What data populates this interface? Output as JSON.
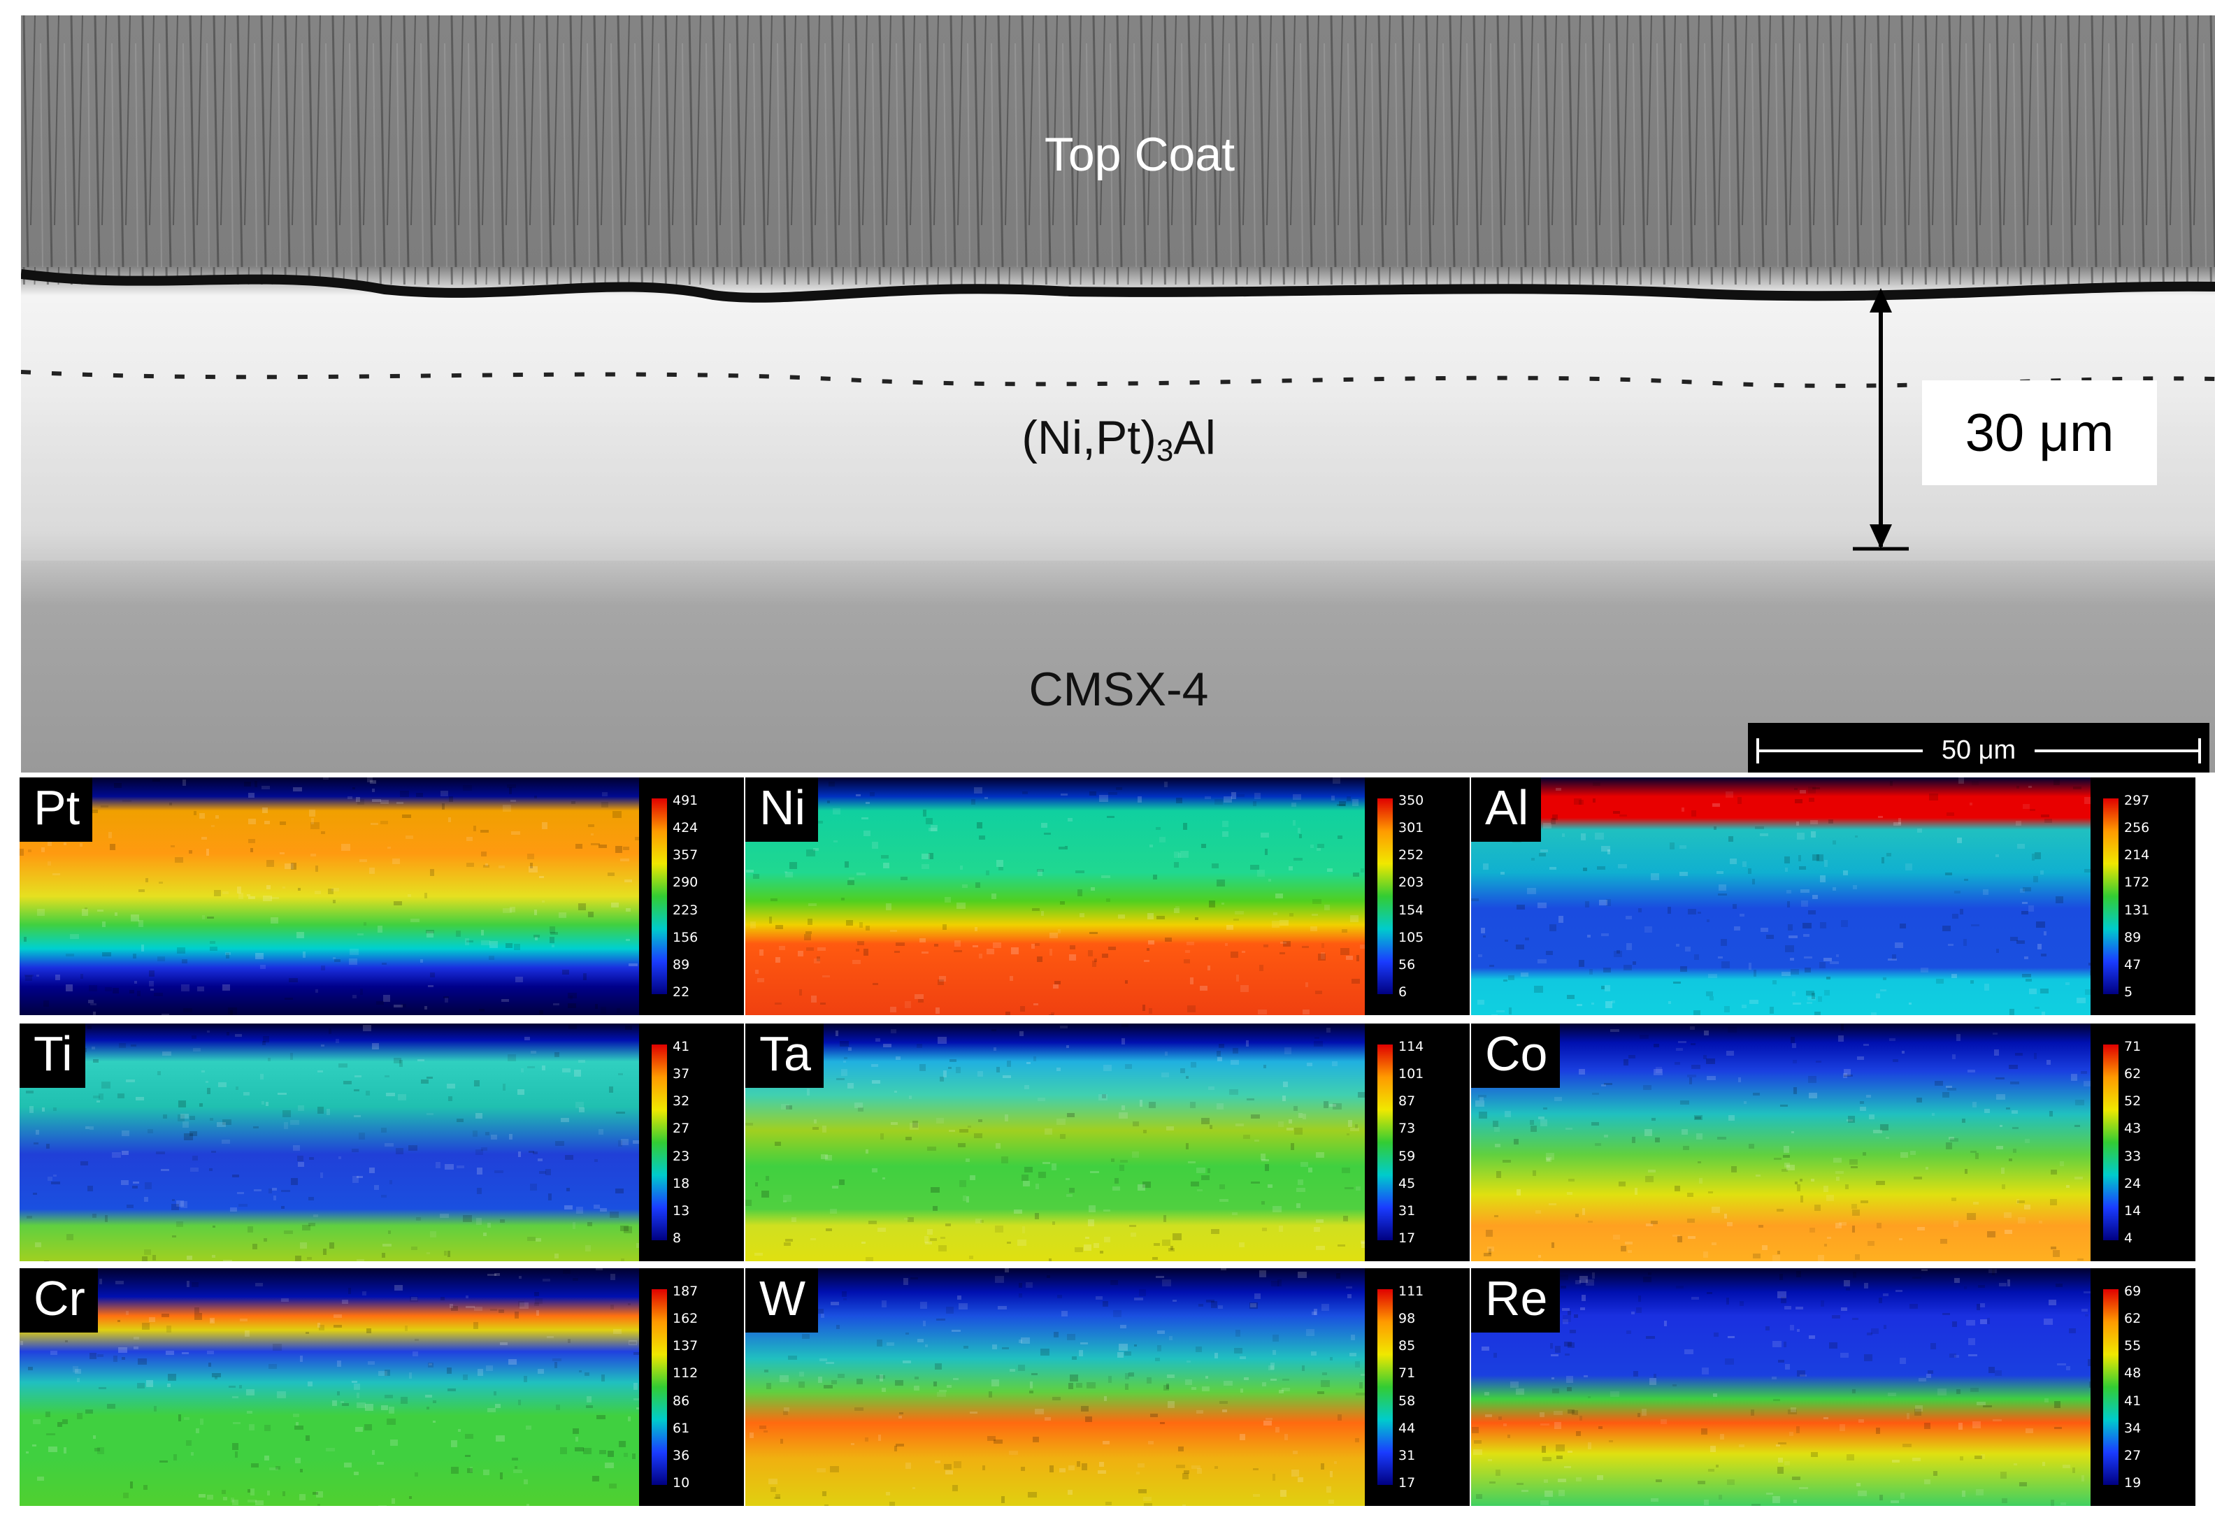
{
  "sem_image": {
    "labels": {
      "top_coat": "Top Coat",
      "bond_coat_prefix": "(Ni,Pt)",
      "bond_coat_subscript": "3",
      "bond_coat_suffix": "Al",
      "substrate": "CMSX-4"
    },
    "thickness_label": "30 μm",
    "scale_bar_label": "50 μm"
  },
  "element_maps": [
    {
      "element": "Pt",
      "scale": [
        "491",
        "424",
        "357",
        "290",
        "223",
        "156",
        "89",
        "22"
      ],
      "profile": [
        [
          0,
          "#000030"
        ],
        [
          0.08,
          "#000a90"
        ],
        [
          0.14,
          "#f0a000"
        ],
        [
          0.32,
          "#ff9a10"
        ],
        [
          0.5,
          "#e6e020"
        ],
        [
          0.62,
          "#40d040"
        ],
        [
          0.72,
          "#00d0d0"
        ],
        [
          0.8,
          "#1a30e0"
        ],
        [
          0.88,
          "#00008a"
        ],
        [
          1,
          "#000040"
        ]
      ]
    },
    {
      "element": "Ni",
      "scale": [
        "350",
        "301",
        "252",
        "203",
        "154",
        "105",
        "56",
        "6"
      ],
      "profile": [
        [
          0,
          "#000030"
        ],
        [
          0.08,
          "#0030c0"
        ],
        [
          0.14,
          "#10d0a0"
        ],
        [
          0.4,
          "#20d890"
        ],
        [
          0.52,
          "#50d020"
        ],
        [
          0.62,
          "#f0d000"
        ],
        [
          0.7,
          "#ff5a10"
        ],
        [
          1,
          "#f04010"
        ]
      ]
    },
    {
      "element": "Al",
      "scale": [
        "297",
        "256",
        "214",
        "172",
        "131",
        "89",
        "47",
        "5"
      ],
      "profile": [
        [
          0,
          "#000030"
        ],
        [
          0.08,
          "#e80000"
        ],
        [
          0.17,
          "#e80000"
        ],
        [
          0.22,
          "#20c0c0"
        ],
        [
          0.4,
          "#10b0d0"
        ],
        [
          0.55,
          "#1a4ce0"
        ],
        [
          0.8,
          "#1a50e0"
        ],
        [
          0.85,
          "#10c8e0"
        ],
        [
          1,
          "#10d0e0"
        ]
      ]
    },
    {
      "element": "Ti",
      "scale": [
        "41",
        "37",
        "32",
        "27",
        "23",
        "18",
        "13",
        "8"
      ],
      "profile": [
        [
          0,
          "#000030"
        ],
        [
          0.07,
          "#0010b0"
        ],
        [
          0.16,
          "#30d0c0"
        ],
        [
          0.35,
          "#20c0b0"
        ],
        [
          0.55,
          "#2040d8"
        ],
        [
          0.78,
          "#1a50e0"
        ],
        [
          0.85,
          "#60d040"
        ],
        [
          1,
          "#a0d020"
        ]
      ]
    },
    {
      "element": "Ta",
      "scale": [
        "114",
        "101",
        "87",
        "73",
        "59",
        "45",
        "31",
        "17"
      ],
      "profile": [
        [
          0,
          "#000030"
        ],
        [
          0.08,
          "#0010b0"
        ],
        [
          0.16,
          "#20b0e0"
        ],
        [
          0.3,
          "#40d0b0"
        ],
        [
          0.45,
          "#a0d020"
        ],
        [
          0.6,
          "#40d040"
        ],
        [
          0.78,
          "#50d040"
        ],
        [
          0.85,
          "#d0e020"
        ],
        [
          1,
          "#e0e010"
        ]
      ]
    },
    {
      "element": "Co",
      "scale": [
        "71",
        "62",
        "52",
        "43",
        "33",
        "24",
        "14",
        "4"
      ],
      "profile": [
        [
          0,
          "#000030"
        ],
        [
          0.08,
          "#0010b0"
        ],
        [
          0.2,
          "#1a40e0"
        ],
        [
          0.38,
          "#20c0c0"
        ],
        [
          0.55,
          "#60d040"
        ],
        [
          0.72,
          "#e0e010"
        ],
        [
          0.85,
          "#ffa020"
        ],
        [
          1,
          "#ffb020"
        ]
      ]
    },
    {
      "element": "Cr",
      "scale": [
        "187",
        "162",
        "137",
        "112",
        "86",
        "61",
        "36",
        "10"
      ],
      "profile": [
        [
          0,
          "#000030"
        ],
        [
          0.12,
          "#0010b0"
        ],
        [
          0.2,
          "#ff7010"
        ],
        [
          0.26,
          "#e0d010"
        ],
        [
          0.35,
          "#2040e0"
        ],
        [
          0.48,
          "#20c0c0"
        ],
        [
          0.62,
          "#40d040"
        ],
        [
          0.8,
          "#40d040"
        ],
        [
          1,
          "#50d030"
        ]
      ]
    },
    {
      "element": "W",
      "scale": [
        "111",
        "98",
        "85",
        "71",
        "58",
        "44",
        "31",
        "17"
      ],
      "profile": [
        [
          0,
          "#000030"
        ],
        [
          0.1,
          "#0010b0"
        ],
        [
          0.2,
          "#1a50e0"
        ],
        [
          0.38,
          "#20c0c0"
        ],
        [
          0.52,
          "#60d040"
        ],
        [
          0.65,
          "#ff6a10"
        ],
        [
          0.8,
          "#f0b010"
        ],
        [
          1,
          "#e0d010"
        ]
      ]
    },
    {
      "element": "Re",
      "scale": [
        "69",
        "62",
        "55",
        "48",
        "41",
        "34",
        "27",
        "19"
      ],
      "profile": [
        [
          0,
          "#000030"
        ],
        [
          0.1,
          "#0010b0"
        ],
        [
          0.2,
          "#1a30e0"
        ],
        [
          0.45,
          "#1a40e0"
        ],
        [
          0.55,
          "#40d040"
        ],
        [
          0.65,
          "#ff5a10"
        ],
        [
          0.78,
          "#e0e010"
        ],
        [
          1,
          "#40d060"
        ]
      ]
    }
  ]
}
